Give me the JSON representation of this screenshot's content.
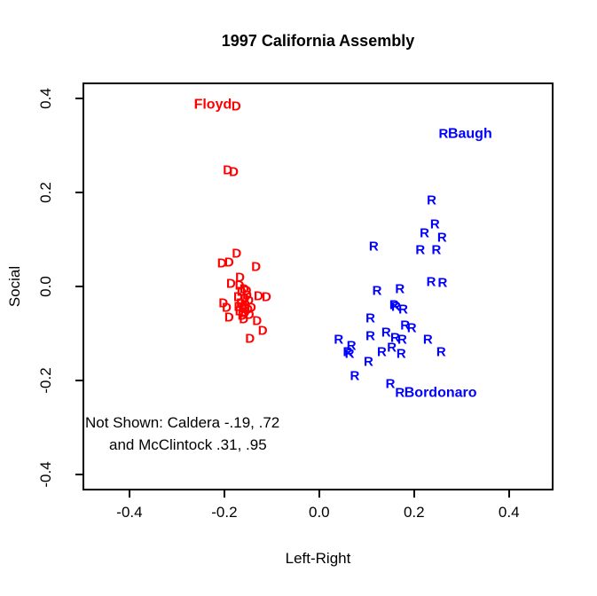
{
  "colors": {
    "democrat": "#ff0000",
    "republican": "#0000ff",
    "axis": "#000000",
    "background": "#ffffff"
  },
  "chart_data": {
    "type": "scatter",
    "title": "1997 California Assembly",
    "xlabel": "Left-Right",
    "ylabel": "Social",
    "xlim": [
      -0.499,
      0.494
    ],
    "ylim": [
      -0.434,
      0.434
    ],
    "grid": false,
    "legend": "none",
    "xticks": [
      -0.4,
      -0.2,
      0.0,
      0.2,
      0.4
    ],
    "yticks": [
      -0.4,
      -0.2,
      0.0,
      0.2,
      0.4
    ],
    "xtick_labels": [
      "-0.4",
      "-0.2",
      "0.0",
      "0.2",
      "0.4"
    ],
    "ytick_labels": [
      "-0.4",
      "-0.2",
      "0.0",
      "0.2",
      "0.4"
    ],
    "annotation": {
      "line1": "Not Shown: Caldera -.19, .72",
      "line2": "and McClintock .31, .95"
    },
    "series": [
      {
        "name": "Democrats",
        "marker": "D",
        "color": "#ff0000",
        "points": [
          [
            -0.175,
            0.383
          ],
          [
            -0.193,
            0.247
          ],
          [
            -0.18,
            0.243
          ],
          [
            -0.174,
            0.07
          ],
          [
            -0.205,
            0.049
          ],
          [
            -0.19,
            0.051
          ],
          [
            -0.133,
            0.042
          ],
          [
            -0.186,
            0.006
          ],
          [
            -0.167,
            0.019
          ],
          [
            -0.111,
            -0.023
          ],
          [
            -0.128,
            -0.02
          ],
          [
            -0.202,
            -0.036
          ],
          [
            -0.195,
            -0.046
          ],
          [
            -0.19,
            -0.066
          ],
          [
            -0.131,
            -0.074
          ],
          [
            -0.119,
            -0.094
          ],
          [
            -0.146,
            -0.112
          ],
          [
            -0.168,
            0.002
          ],
          [
            -0.158,
            -0.005
          ],
          [
            -0.164,
            -0.012
          ],
          [
            -0.152,
            -0.018
          ],
          [
            -0.171,
            -0.022
          ],
          [
            -0.157,
            -0.026
          ],
          [
            -0.148,
            -0.031
          ],
          [
            -0.165,
            -0.035
          ],
          [
            -0.155,
            -0.04
          ],
          [
            -0.161,
            -0.046
          ],
          [
            -0.15,
            -0.05
          ],
          [
            -0.168,
            -0.052
          ],
          [
            -0.157,
            -0.057
          ],
          [
            -0.147,
            -0.061
          ],
          [
            -0.162,
            -0.063
          ],
          [
            -0.153,
            -0.01
          ],
          [
            -0.17,
            -0.043
          ],
          [
            -0.143,
            -0.046
          ],
          [
            -0.159,
            -0.07
          ]
        ],
        "labeled_points": [
          {
            "x": -0.175,
            "y": 0.383,
            "label": "Floyd",
            "side": "left"
          }
        ]
      },
      {
        "name": "Republicans",
        "marker": "R",
        "color": "#0000ff",
        "points": [
          [
            0.262,
            0.325
          ],
          [
            0.237,
            0.183
          ],
          [
            0.244,
            0.132
          ],
          [
            0.222,
            0.114
          ],
          [
            0.259,
            0.104
          ],
          [
            0.213,
            0.077
          ],
          [
            0.247,
            0.077
          ],
          [
            0.115,
            0.085
          ],
          [
            0.122,
            -0.009
          ],
          [
            0.17,
            -0.006
          ],
          [
            0.236,
            0.009
          ],
          [
            0.26,
            0.007
          ],
          [
            0.158,
            -0.04
          ],
          [
            0.162,
            -0.044
          ],
          [
            0.177,
            -0.049
          ],
          [
            0.108,
            -0.068
          ],
          [
            0.181,
            -0.083
          ],
          [
            0.195,
            -0.088
          ],
          [
            0.041,
            -0.113
          ],
          [
            0.068,
            -0.127
          ],
          [
            0.108,
            -0.106
          ],
          [
            0.141,
            -0.098
          ],
          [
            0.16,
            -0.109
          ],
          [
            0.175,
            -0.113
          ],
          [
            0.229,
            -0.113
          ],
          [
            0.064,
            -0.144
          ],
          [
            0.06,
            -0.14
          ],
          [
            0.257,
            -0.14
          ],
          [
            0.132,
            -0.14
          ],
          [
            0.153,
            -0.13
          ],
          [
            0.173,
            -0.143
          ],
          [
            0.104,
            -0.16
          ],
          [
            0.075,
            -0.191
          ],
          [
            0.15,
            -0.208
          ],
          [
            0.17,
            -0.226
          ]
        ],
        "labeled_points": [
          {
            "x": 0.262,
            "y": 0.325,
            "label": "Baugh",
            "side": "right"
          },
          {
            "x": 0.17,
            "y": -0.226,
            "label": "Bordonaro",
            "side": "right"
          }
        ]
      }
    ]
  }
}
